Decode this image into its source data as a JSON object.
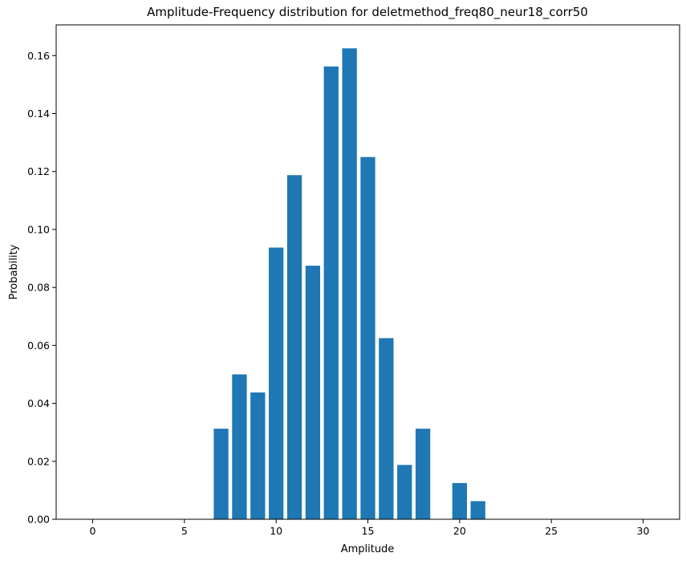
{
  "chart_data": {
    "type": "bar",
    "title": "Amplitude-Frequency distribution for deletmethod_freq80_neur18_corr50",
    "xlabel": "Amplitude",
    "ylabel": "Probability",
    "x": [
      0,
      1,
      2,
      3,
      4,
      5,
      6,
      7,
      8,
      9,
      10,
      11,
      12,
      13,
      14,
      15,
      16,
      17,
      18,
      19,
      20,
      21,
      22,
      23,
      24,
      25,
      26,
      27,
      28,
      29,
      30
    ],
    "values": [
      0,
      0,
      0,
      0,
      0,
      0,
      0,
      0.03125,
      0.05,
      0.04375,
      0.09375,
      0.11875,
      0.0875,
      0.15625,
      0.1625,
      0.125,
      0.0625,
      0.01875,
      0.03125,
      0,
      0.0125,
      0.00625,
      0,
      0,
      0,
      0,
      0,
      0,
      0,
      0,
      0
    ],
    "xlim": [
      -1.99,
      31.99
    ],
    "ylim": [
      0,
      0.1706
    ],
    "xticks": [
      0,
      5,
      10,
      15,
      20,
      25,
      30
    ],
    "yticks": [
      0.0,
      0.02,
      0.04,
      0.06,
      0.08,
      0.1,
      0.12,
      0.14,
      0.16
    ],
    "xtick_labels": [
      "0",
      "5",
      "10",
      "15",
      "20",
      "25",
      "30"
    ],
    "ytick_labels": [
      "0.00",
      "0.02",
      "0.04",
      "0.06",
      "0.08",
      "0.10",
      "0.12",
      "0.14",
      "0.16"
    ],
    "bar_width": 0.8,
    "bar_color": "#1f77b4",
    "grid": false,
    "legend": "none"
  }
}
